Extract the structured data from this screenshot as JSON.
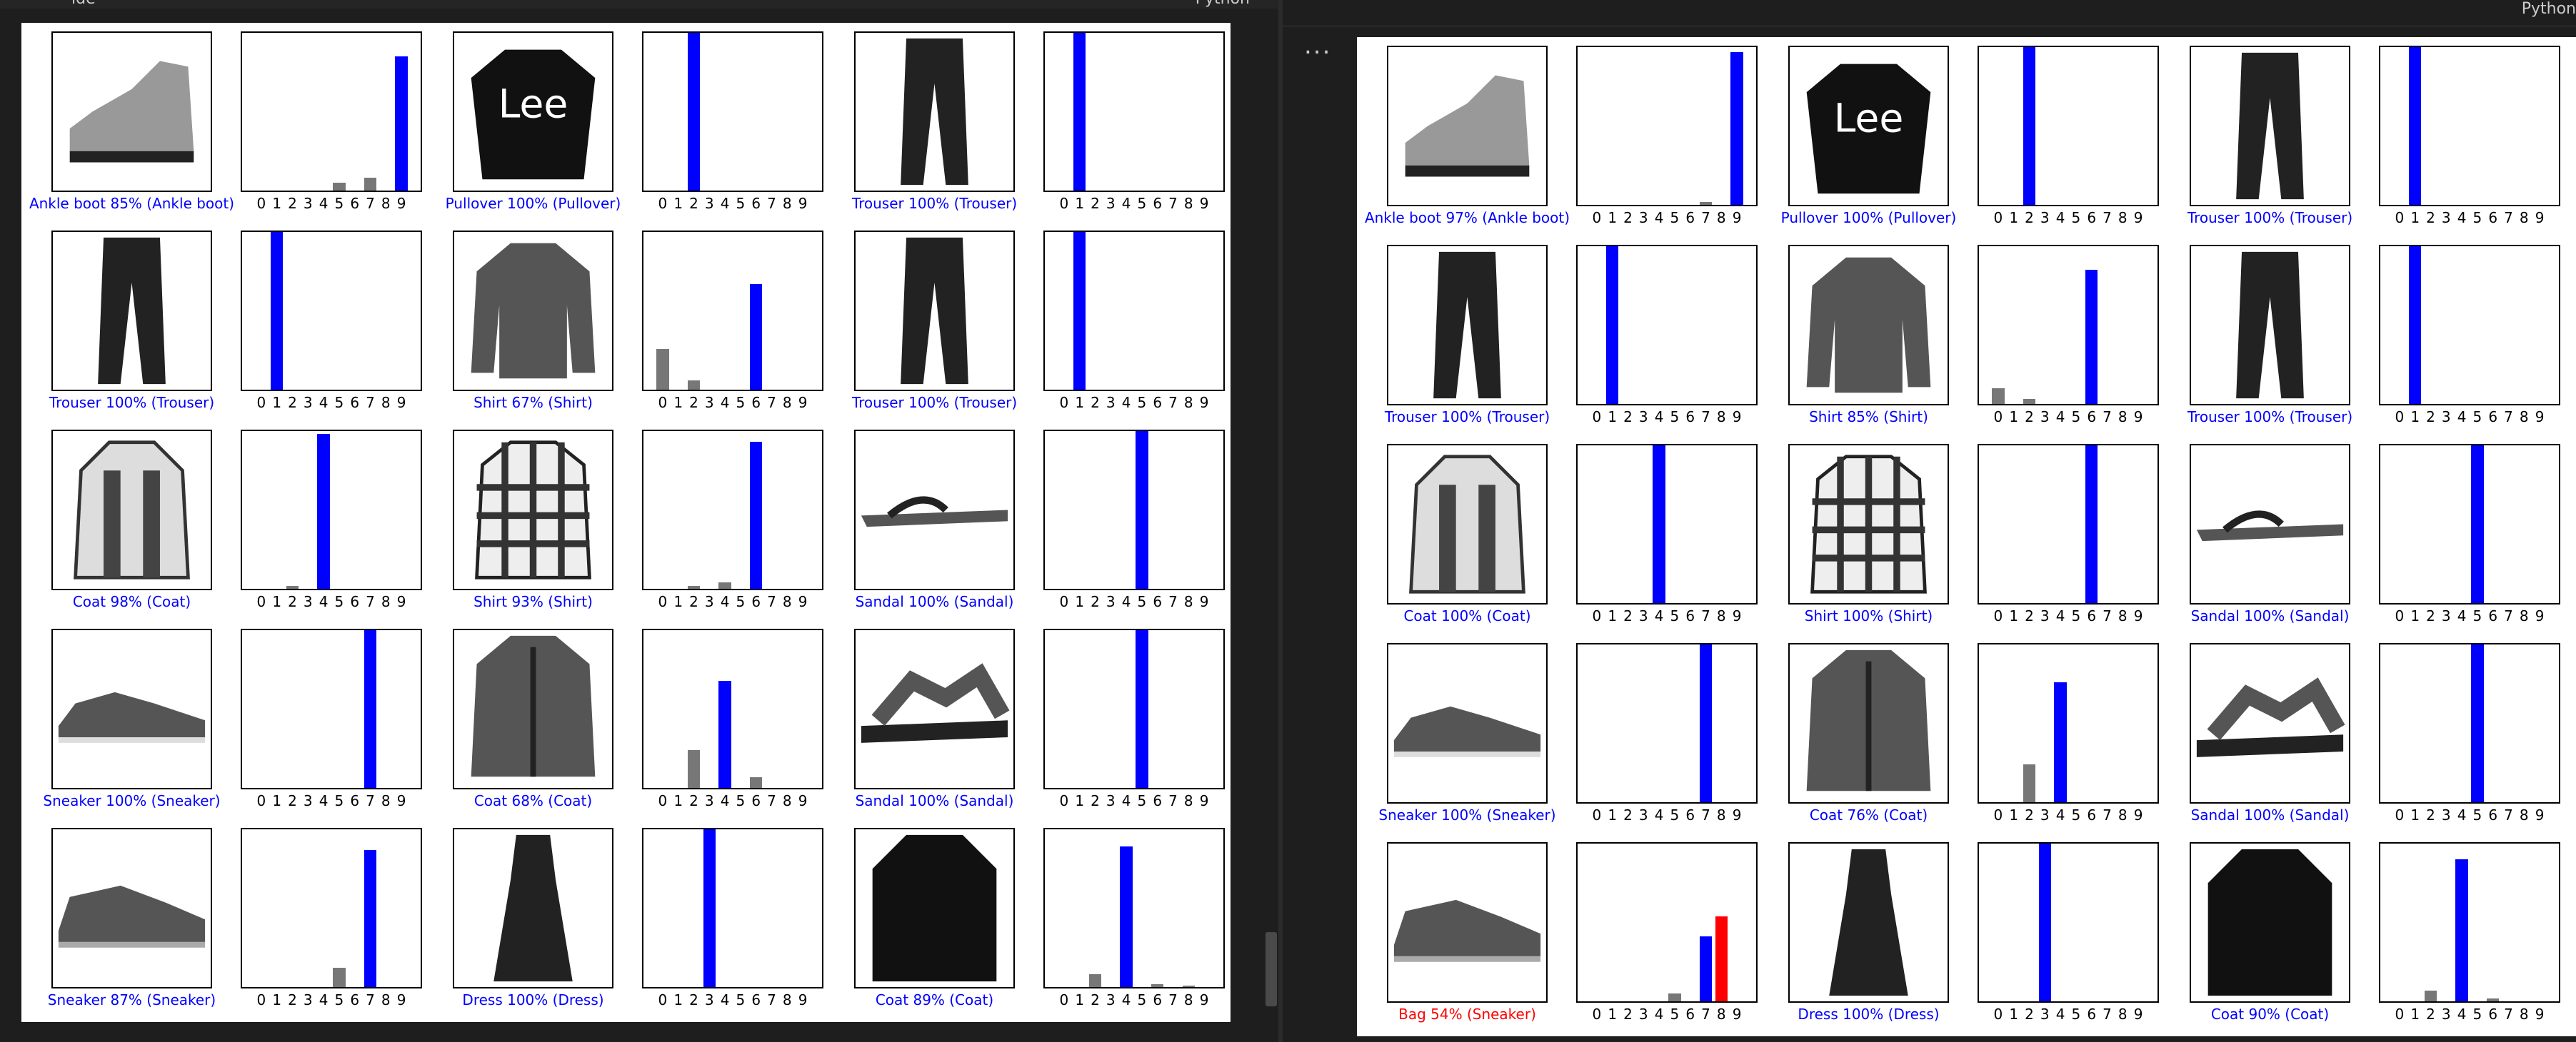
{
  "window": {
    "left_header_label": "ide",
    "left_header_right_label": "Python",
    "right_header_label": "Python",
    "more_label": "..."
  },
  "colors": {
    "correct": "#0000ff",
    "wrong": "#ff0000",
    "other": "#777777"
  },
  "digits": [
    "0",
    "1",
    "2",
    "3",
    "4",
    "5",
    "6",
    "7",
    "8",
    "9"
  ],
  "left": [
    {
      "caption": "Ankle boot 85% (Ankle boot)",
      "ok": true,
      "item": "boot",
      "bars": {
        "5": 0.05,
        "7": 0.08,
        "9": 0.85
      },
      "pred": 9,
      "true_label": 9
    },
    {
      "caption": "Pullover 100% (Pullover)",
      "ok": true,
      "item": "pullover",
      "bars": {
        "2": 1.0
      },
      "pred": 2,
      "true_label": 2
    },
    {
      "caption": "Trouser 100% (Trouser)",
      "ok": true,
      "item": "trouser",
      "bars": {
        "1": 1.0
      },
      "pred": 1,
      "true_label": 1
    },
    {
      "caption": "Trouser 100% (Trouser)",
      "ok": true,
      "item": "trouser",
      "bars": {
        "1": 1.0
      },
      "pred": 1,
      "true_label": 1
    },
    {
      "caption": "Shirt 67% (Shirt)",
      "ok": true,
      "item": "shirt",
      "bars": {
        "0": 0.26,
        "2": 0.06,
        "6": 0.67
      },
      "pred": 6,
      "true_label": 6
    },
    {
      "caption": "Trouser 100% (Trouser)",
      "ok": true,
      "item": "trouser",
      "bars": {
        "1": 1.0
      },
      "pred": 1,
      "true_label": 1
    },
    {
      "caption": "Coat 98% (Coat)",
      "ok": true,
      "item": "coat",
      "bars": {
        "2": 0.02,
        "4": 0.98
      },
      "pred": 4,
      "true_label": 4
    },
    {
      "caption": "Shirt 93% (Shirt)",
      "ok": true,
      "item": "plaid",
      "bars": {
        "2": 0.02,
        "4": 0.04,
        "6": 0.93
      },
      "pred": 6,
      "true_label": 6
    },
    {
      "caption": "Sandal 100% (Sandal)",
      "ok": true,
      "item": "sandal",
      "bars": {
        "5": 1.0
      },
      "pred": 5,
      "true_label": 5
    },
    {
      "caption": "Sneaker 100% (Sneaker)",
      "ok": true,
      "item": "sneaker",
      "bars": {
        "7": 1.0
      },
      "pred": 7,
      "true_label": 7
    },
    {
      "caption": "Coat 68% (Coat)",
      "ok": true,
      "item": "jacket",
      "bars": {
        "2": 0.24,
        "4": 0.68,
        "6": 0.07
      },
      "pred": 4,
      "true_label": 4
    },
    {
      "caption": "Sandal 100% (Sandal)",
      "ok": true,
      "item": "sandal2",
      "bars": {
        "5": 1.0
      },
      "pred": 5,
      "true_label": 5
    },
    {
      "caption": "Sneaker 87% (Sneaker)",
      "ok": true,
      "item": "sneaker2",
      "bars": {
        "5": 0.12,
        "7": 0.87
      },
      "pred": 7,
      "true_label": 7
    },
    {
      "caption": "Dress 100% (Dress)",
      "ok": true,
      "item": "dress",
      "bars": {
        "3": 1.0
      },
      "pred": 3,
      "true_label": 3
    },
    {
      "caption": "Coat 89% (Coat)",
      "ok": true,
      "item": "bigcoat",
      "bars": {
        "2": 0.08,
        "4": 0.89,
        "6": 0.02,
        "8": 0.01
      },
      "pred": 4,
      "true_label": 4
    }
  ],
  "right": [
    {
      "caption": "Ankle boot 97% (Ankle boot)",
      "ok": true,
      "item": "boot",
      "bars": {
        "7": 0.02,
        "9": 0.97
      },
      "pred": 9,
      "true_label": 9
    },
    {
      "caption": "Pullover 100% (Pullover)",
      "ok": true,
      "item": "pullover",
      "bars": {
        "2": 1.0
      },
      "pred": 2,
      "true_label": 2
    },
    {
      "caption": "Trouser 100% (Trouser)",
      "ok": true,
      "item": "trouser",
      "bars": {
        "1": 1.0
      },
      "pred": 1,
      "true_label": 1
    },
    {
      "caption": "Trouser 100% (Trouser)",
      "ok": true,
      "item": "trouser",
      "bars": {
        "1": 1.0
      },
      "pred": 1,
      "true_label": 1
    },
    {
      "caption": "Shirt 85% (Shirt)",
      "ok": true,
      "item": "shirt",
      "bars": {
        "0": 0.1,
        "2": 0.03,
        "6": 0.85
      },
      "pred": 6,
      "true_label": 6
    },
    {
      "caption": "Trouser 100% (Trouser)",
      "ok": true,
      "item": "trouser",
      "bars": {
        "1": 1.0
      },
      "pred": 1,
      "true_label": 1
    },
    {
      "caption": "Coat 100% (Coat)",
      "ok": true,
      "item": "coat",
      "bars": {
        "4": 1.0
      },
      "pred": 4,
      "true_label": 4
    },
    {
      "caption": "Shirt 100% (Shirt)",
      "ok": true,
      "item": "plaid",
      "bars": {
        "6": 1.0
      },
      "pred": 6,
      "true_label": 6
    },
    {
      "caption": "Sandal 100% (Sandal)",
      "ok": true,
      "item": "sandal",
      "bars": {
        "5": 1.0
      },
      "pred": 5,
      "true_label": 5
    },
    {
      "caption": "Sneaker 100% (Sneaker)",
      "ok": true,
      "item": "sneaker",
      "bars": {
        "7": 1.0
      },
      "pred": 7,
      "true_label": 7
    },
    {
      "caption": "Coat 76% (Coat)",
      "ok": true,
      "item": "jacket",
      "bars": {
        "2": 0.24,
        "4": 0.76
      },
      "pred": 4,
      "true_label": 4
    },
    {
      "caption": "Sandal 100% (Sandal)",
      "ok": true,
      "item": "sandal2",
      "bars": {
        "5": 1.0
      },
      "pred": 5,
      "true_label": 5
    },
    {
      "caption": "Bag 54% (Sneaker)",
      "ok": false,
      "item": "sneaker2",
      "bars": {
        "5": 0.05,
        "7": 0.41,
        "8": 0.54
      },
      "pred": 8,
      "true_label": 7
    },
    {
      "caption": "Dress 100% (Dress)",
      "ok": true,
      "item": "dress",
      "bars": {
        "3": 1.0
      },
      "pred": 3,
      "true_label": 3
    },
    {
      "caption": "Coat 90% (Coat)",
      "ok": true,
      "item": "bigcoat",
      "bars": {
        "2": 0.07,
        "4": 0.9,
        "6": 0.02
      },
      "pred": 4,
      "true_label": 4
    }
  ]
}
